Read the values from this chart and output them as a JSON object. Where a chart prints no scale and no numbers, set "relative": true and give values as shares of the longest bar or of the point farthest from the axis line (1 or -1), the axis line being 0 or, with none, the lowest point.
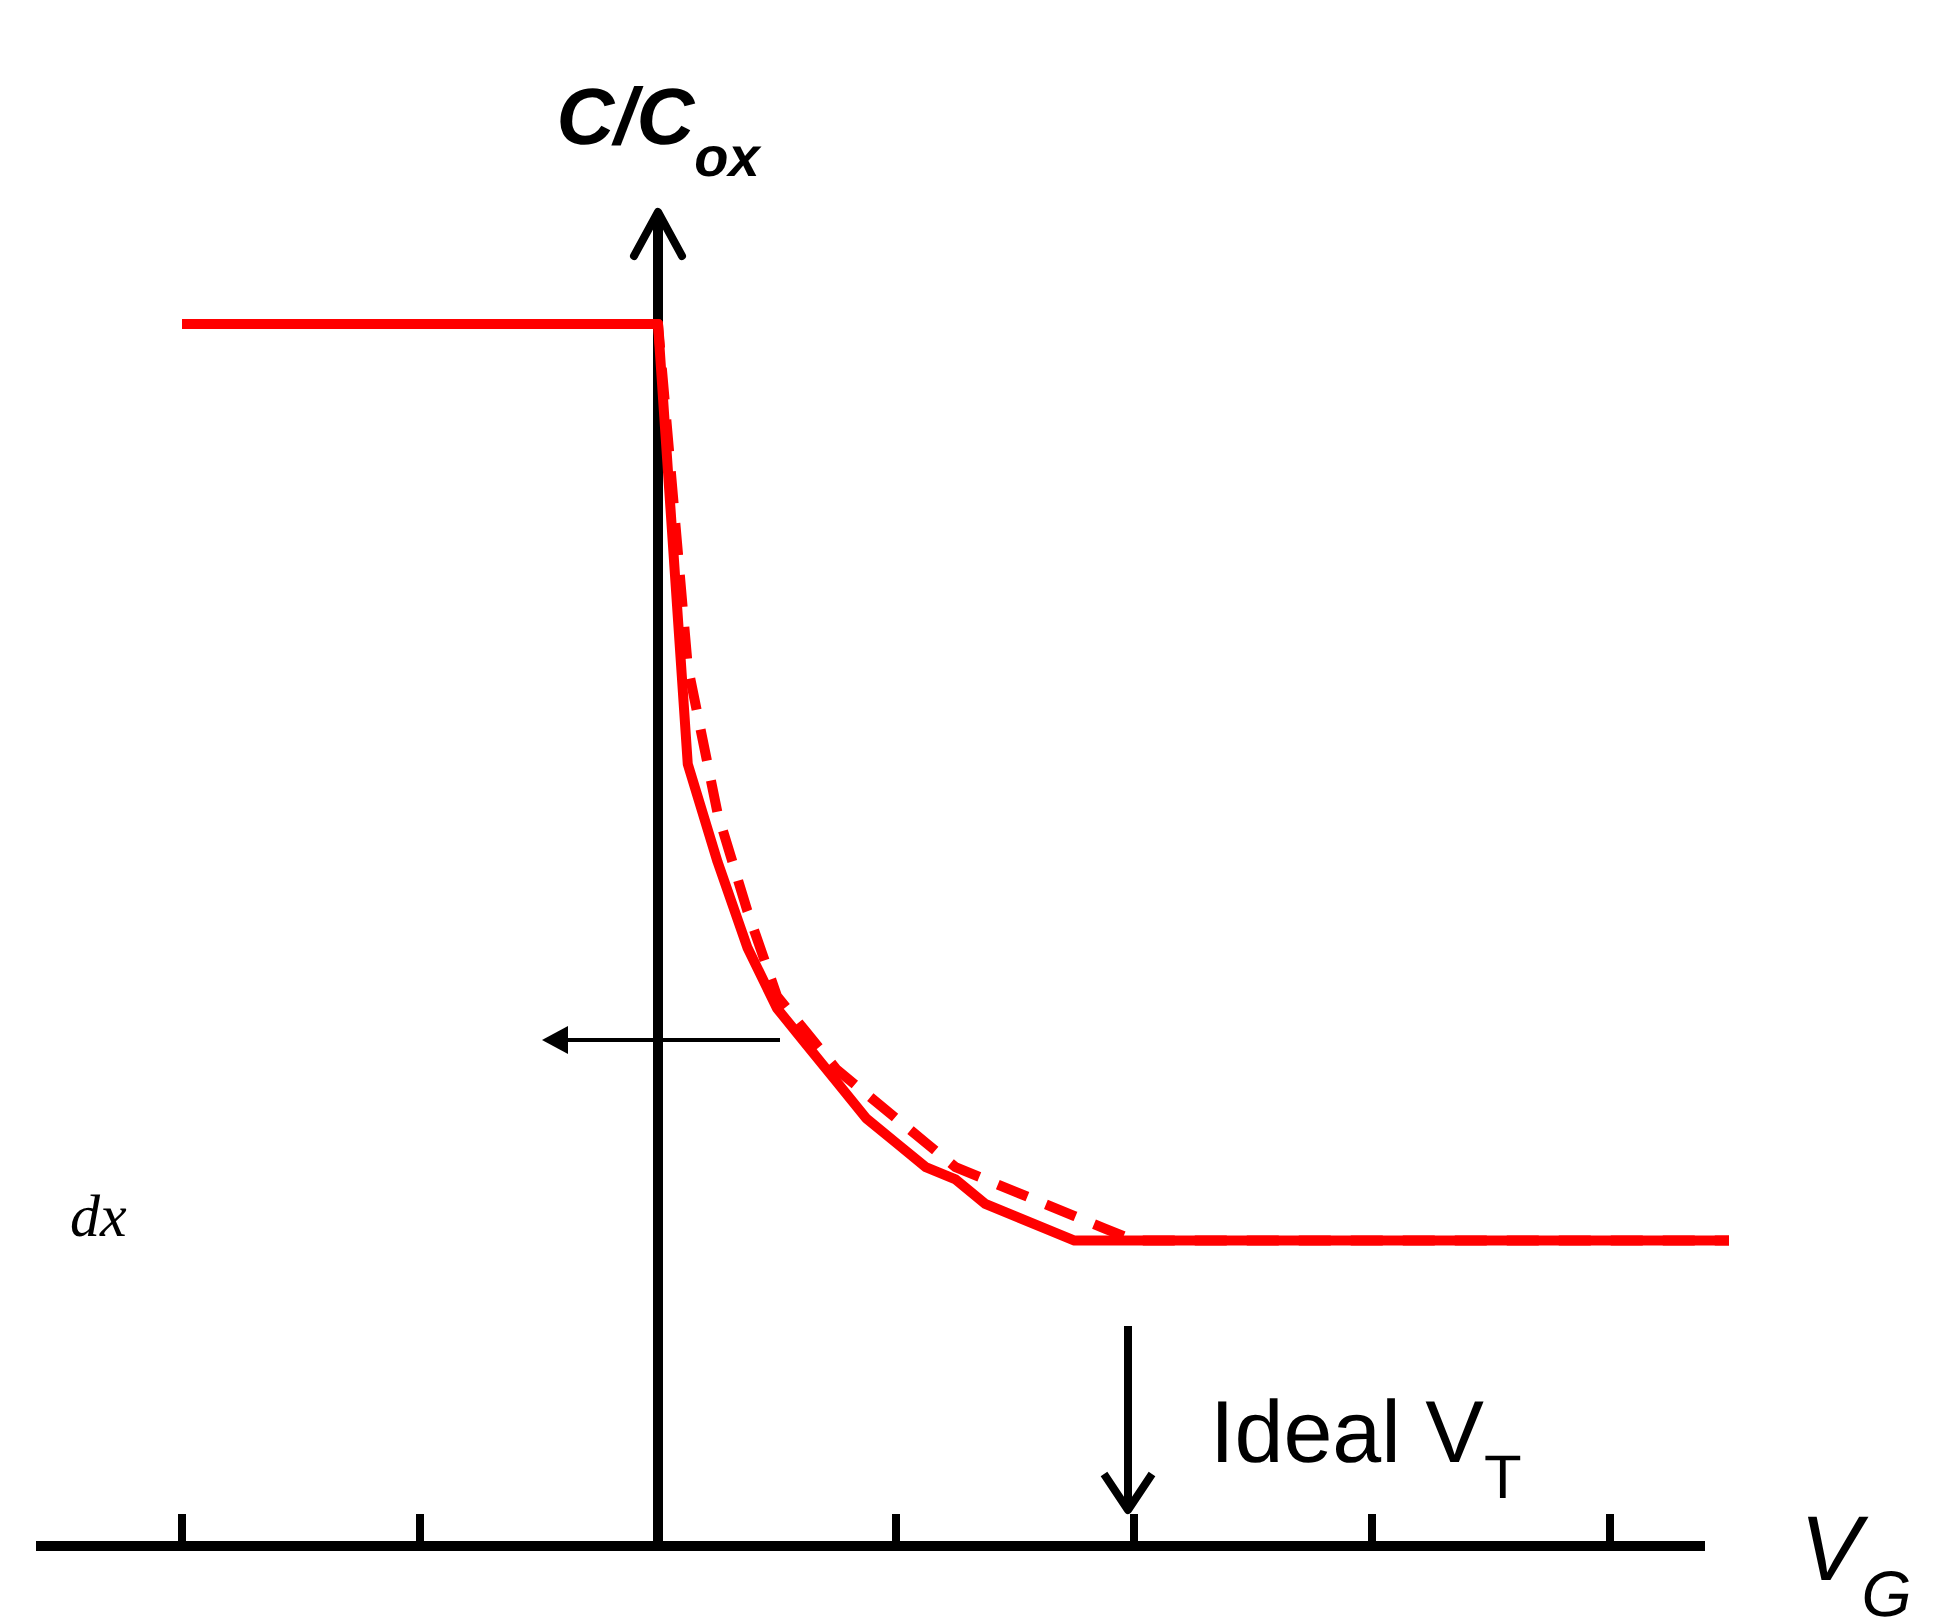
{
  "chart_data": {
    "type": "line",
    "relative": true,
    "xlabel": "V$_{G}$",
    "ylabel": "C/C$_{ox}$",
    "categories": [
      null,
      null,
      null,
      null,
      null,
      null,
      null,
      null,
      null,
      null,
      null,
      null,
      null,
      null,
      null,
      null,
      null,
      null,
      null,
      null,
      null,
      null,
      null,
      null,
      null,
      null,
      null,
      null,
      null,
      null,
      null,
      null,
      null,
      null,
      null,
      null,
      null,
      null,
      null,
      null,
      null,
      null,
      null,
      null,
      null,
      null,
      null,
      null,
      null,
      null,
      null,
      null,
      null
    ],
    "series": [
      {
        "color": "#ff0000",
        "line_style": "solid",
        "values": [
          1,
          1,
          1,
          1,
          1,
          1,
          1,
          1,
          1,
          1,
          1,
          1,
          1,
          1,
          1,
          1,
          1,
          0.64,
          0.56,
          0.49,
          0.44,
          0.41,
          0.38,
          0.35,
          0.33,
          0.31,
          0.3,
          0.28,
          0.27,
          0.26,
          0.25,
          0.25,
          0.25,
          0.25,
          0.25,
          0.25,
          0.25,
          0.25,
          0.25,
          0.25,
          0.25,
          0.25,
          0.25,
          0.25,
          0.25,
          0.25,
          0.25,
          0.25,
          0.25,
          0.25,
          0.25,
          0.25,
          0.25
        ]
      },
      {
        "color": "#ff0000",
        "line_style": "dashed",
        "values": [
          1,
          1,
          1,
          1,
          1,
          1,
          1,
          1,
          1,
          1,
          1,
          1,
          1,
          1,
          1,
          1,
          1,
          0.72,
          0.6,
          0.52,
          0.45,
          0.42,
          0.39,
          0.37,
          0.35,
          0.33,
          0.31,
          0.3,
          0.29,
          0.28,
          0.27,
          0.26,
          0.25,
          0.25,
          0.25,
          0.25,
          0.25,
          0.25,
          0.25,
          0.25,
          0.25,
          0.25,
          0.25,
          0.25,
          0.25,
          0.25,
          0.25,
          0.25,
          0.25,
          0.25,
          0.25,
          0.25,
          0.25
        ]
      }
    ],
    "annotations": [
      "dx",
      "Ideal V$_{T}$"
    ],
    "grid": false,
    "marker": "none"
  }
}
